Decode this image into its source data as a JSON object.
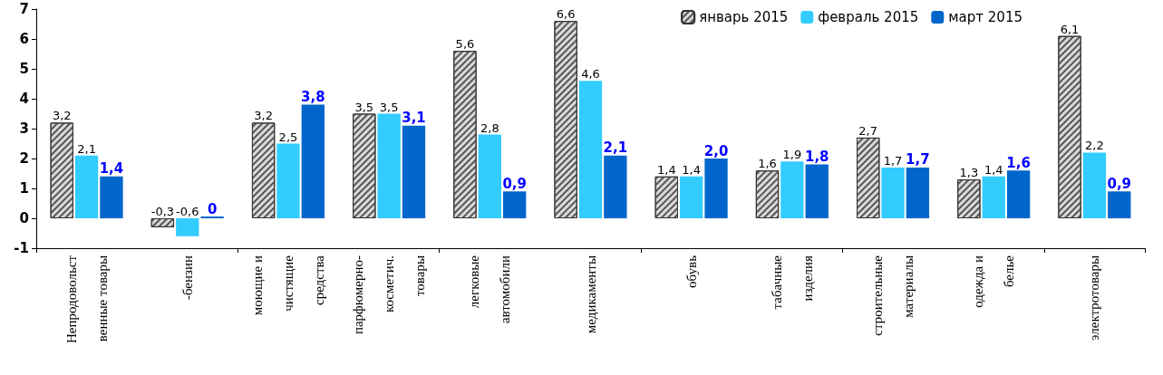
{
  "chart_data": {
    "type": "bar",
    "categories": [
      "Непродовольст\nвенные товары",
      "-бензин",
      "моющие и\nчистящие\nсредства",
      "парфюмерно-\nкосметич.\nтовары",
      "легковые\nавтомобили",
      "медикаменты",
      "обувь",
      "табачные\nизделия",
      "строительные\nматериалы",
      "одежда и\nбелье",
      "электротовары"
    ],
    "series": [
      {
        "name": "январь 2015",
        "color": "#d9d9d9",
        "values": [
          3.2,
          -0.3,
          3.2,
          3.5,
          5.6,
          6.6,
          1.4,
          1.6,
          2.7,
          1.3,
          6.1
        ],
        "value_labels": [
          "3,2",
          "-0,3",
          "3,2",
          "3,5",
          "5,6",
          "6,6",
          "1,4",
          "1,6",
          "2,7",
          "1,3",
          "6,1"
        ]
      },
      {
        "name": "февраль 2015",
        "color": "#33ccff",
        "values": [
          2.1,
          -0.6,
          2.5,
          3.5,
          2.8,
          4.6,
          1.4,
          1.9,
          1.7,
          1.4,
          2.2
        ],
        "value_labels": [
          "2,1",
          "-0,6",
          "2,5",
          "3,5",
          "2,8",
          "4,6",
          "1,4",
          "1,9",
          "1,7",
          "1,4",
          "2,2"
        ]
      },
      {
        "name": "март 2015",
        "color": "#0066cc",
        "values": [
          1.4,
          0,
          3.8,
          3.1,
          0.9,
          2.1,
          2.0,
          1.8,
          1.7,
          1.6,
          0.9
        ],
        "value_labels": [
          "1,4",
          "0",
          "3,8",
          "3,1",
          "0,9",
          "2,1",
          "2,0",
          "1,8",
          "1,7",
          "1,6",
          "0,9"
        ]
      }
    ],
    "ylim": [
      -1,
      7
    ],
    "yticks": [
      -1,
      0,
      1,
      2,
      3,
      4,
      5,
      6,
      7
    ],
    "grid": false,
    "legend": "top right"
  }
}
